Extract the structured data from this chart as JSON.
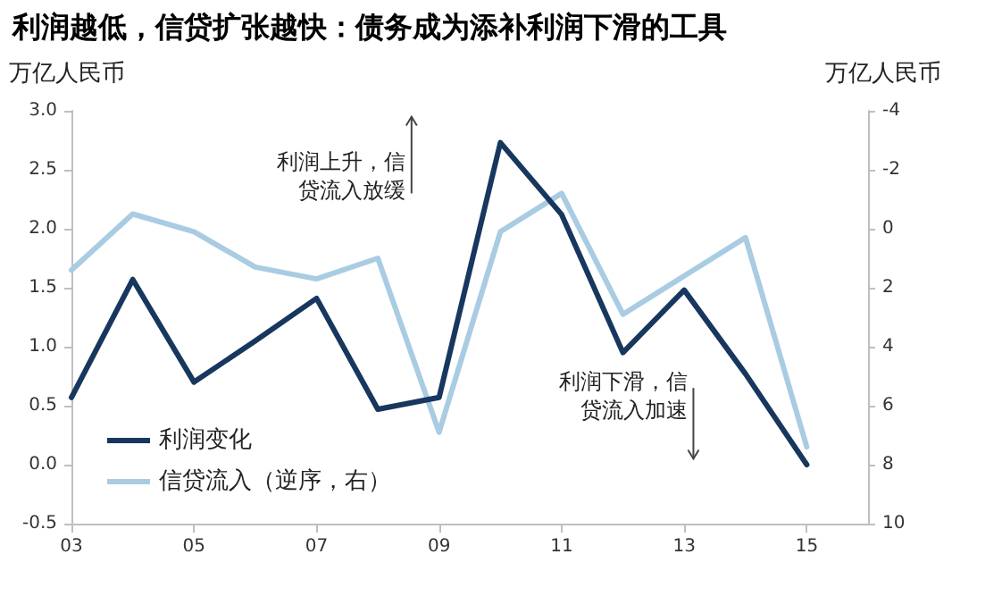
{
  "chart_data": {
    "type": "line",
    "title": "利润越低，信贷扩张越快：债务成为添补利润下滑的工具",
    "ylabel": "万亿人民币",
    "y2label": "万亿人民币",
    "x": [
      2003,
      2004,
      2005,
      2006,
      2007,
      2008,
      2009,
      2010,
      2011,
      2012,
      2013,
      2014,
      2015
    ],
    "series": [
      {
        "name": "利润变化",
        "color": "#17375e",
        "values": [
          0.57,
          1.57,
          0.7,
          1.05,
          1.41,
          0.47,
          0.57,
          2.73,
          2.12,
          0.95,
          1.48,
          0.77,
          0.0
        ]
      },
      {
        "name": "信贷流入（逆序，右）",
        "color": "#a9cce3",
        "axis": "y2",
        "values": [
          1.4,
          -0.5,
          0.1,
          1.3,
          1.7,
          1.0,
          6.9,
          0.1,
          -1.2,
          2.9,
          1.6,
          0.3,
          7.4
        ]
      }
    ],
    "xlim": [
      2003,
      2016
    ],
    "xticks": [
      {
        "value": 2003,
        "label": "03"
      },
      {
        "value": 2005,
        "label": "05"
      },
      {
        "value": 2007,
        "label": "07"
      },
      {
        "value": 2009,
        "label": "09"
      },
      {
        "value": 2011,
        "label": "11"
      },
      {
        "value": 2013,
        "label": "13"
      },
      {
        "value": 2015,
        "label": "15"
      }
    ],
    "ylim": [
      -0.5,
      3.0
    ],
    "yticks": [
      {
        "value": -0.5,
        "label": "-0.5"
      },
      {
        "value": 0,
        "label": "0.0"
      },
      {
        "value": 0.5,
        "label": "0.5"
      },
      {
        "value": 1,
        "label": "1.0"
      },
      {
        "value": 1.5,
        "label": "1.5"
      },
      {
        "value": 2,
        "label": "2.0"
      },
      {
        "value": 2.5,
        "label": "2.5"
      },
      {
        "value": 3,
        "label": "3.0"
      }
    ],
    "y2lim": [
      10,
      -4
    ],
    "y2ticks": [
      -4,
      -2,
      0,
      2,
      4,
      6,
      8,
      10
    ],
    "annotations": [
      "利润上升，信贷流入放缓",
      "利润下滑，信贷流入加速"
    ],
    "legend": "bottom left",
    "grid": false,
    "marker": "none",
    "line_style": "solid"
  }
}
